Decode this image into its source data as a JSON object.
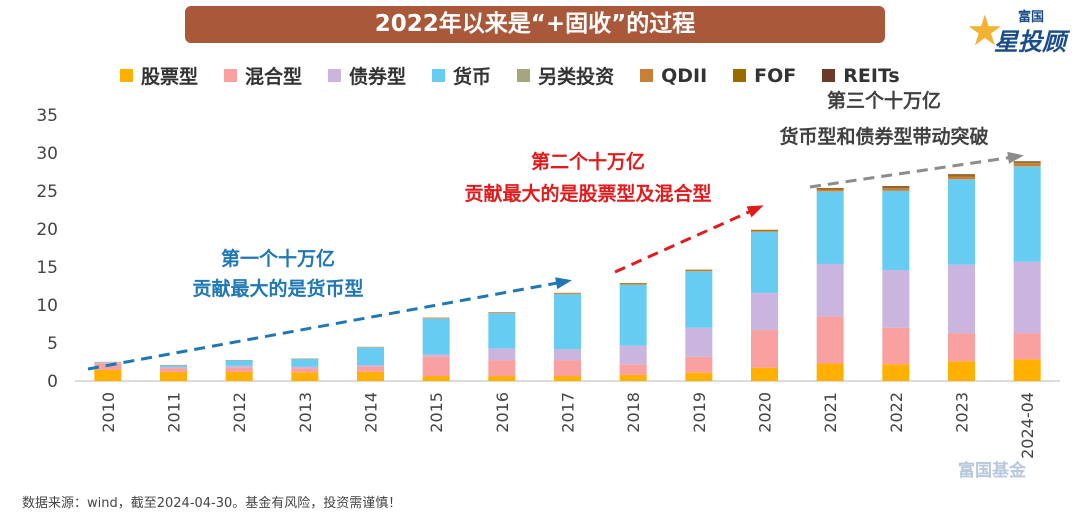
{
  "title": "2022年以来是“+固收”的过程",
  "logo": {
    "line1": "富国",
    "line2": "星投顾"
  },
  "watermark": "富国基金",
  "footnote": "数据来源：wind，截至2024-04-30。基金有风险，投资需谨慎！",
  "annotations": [
    {
      "line1": "第一个十万亿",
      "line2": "贡献最大的是货币型",
      "color": "#1F77B4"
    },
    {
      "line1": "第二个十万亿",
      "line2": "贡献最大的是股票型及混合型",
      "color": "#E31A1C"
    },
    {
      "line1": "第三个十万亿",
      "line2": "货币型和债券型带动突破",
      "color": "#404040"
    }
  ],
  "chart_data": {
    "type": "bar",
    "stacked": true,
    "title": "",
    "xlabel": "",
    "ylabel": "",
    "ylim": [
      0,
      35
    ],
    "yticks": [
      0,
      5,
      10,
      15,
      20,
      25,
      30,
      35
    ],
    "grid": false,
    "legend_position": "top",
    "categories": [
      "2010",
      "2011",
      "2012",
      "2013",
      "2014",
      "2015",
      "2016",
      "2017",
      "2018",
      "2019",
      "2020",
      "2021",
      "2022",
      "2023",
      "2024-04"
    ],
    "series": [
      {
        "name": "股票型",
        "color": "#FFB000",
        "values": [
          1.45,
          1.2,
          1.2,
          1.15,
          1.2,
          0.65,
          0.65,
          0.65,
          0.8,
          1.1,
          1.75,
          2.3,
          2.2,
          2.6,
          2.85
        ]
      },
      {
        "name": "混合型",
        "color": "#F9A0A0",
        "values": [
          0.9,
          0.5,
          0.6,
          0.55,
          0.7,
          2.55,
          2.1,
          2.1,
          1.4,
          2.1,
          4.95,
          6.2,
          4.8,
          3.7,
          3.45
        ]
      },
      {
        "name": "债券型",
        "color": "#C9B5DD",
        "values": [
          0.05,
          0.15,
          0.2,
          0.2,
          0.2,
          0.3,
          1.55,
          1.45,
          2.45,
          3.8,
          4.9,
          6.9,
          7.6,
          9.0,
          9.4
        ]
      },
      {
        "name": "货币",
        "color": "#66CCF2",
        "values": [
          0.05,
          0.2,
          0.7,
          1.0,
          2.3,
          4.7,
          4.6,
          7.2,
          8.0,
          7.4,
          8.0,
          9.5,
          10.4,
          11.2,
          12.5
        ]
      },
      {
        "name": "另类投资",
        "color": "#A5A57E",
        "values": [
          0.02,
          0.02,
          0.02,
          0.02,
          0.05,
          0.05,
          0.05,
          0.05,
          0.05,
          0.05,
          0.05,
          0.05,
          0.05,
          0.05,
          0.05
        ]
      },
      {
        "name": "QDII",
        "color": "#C87F3A",
        "values": [
          0.05,
          0.05,
          0.05,
          0.05,
          0.05,
          0.1,
          0.1,
          0.1,
          0.1,
          0.1,
          0.15,
          0.2,
          0.3,
          0.35,
          0.4
        ]
      },
      {
        "name": "FOF",
        "color": "#9C6B00",
        "values": [
          0,
          0,
          0,
          0,
          0,
          0,
          0,
          0.05,
          0.1,
          0.1,
          0.1,
          0.2,
          0.2,
          0.2,
          0.15
        ]
      },
      {
        "name": "REITs",
        "color": "#6B3A2A",
        "values": [
          0,
          0,
          0,
          0,
          0,
          0,
          0,
          0,
          0,
          0,
          0,
          0.05,
          0.1,
          0.1,
          0.1
        ]
      }
    ]
  }
}
